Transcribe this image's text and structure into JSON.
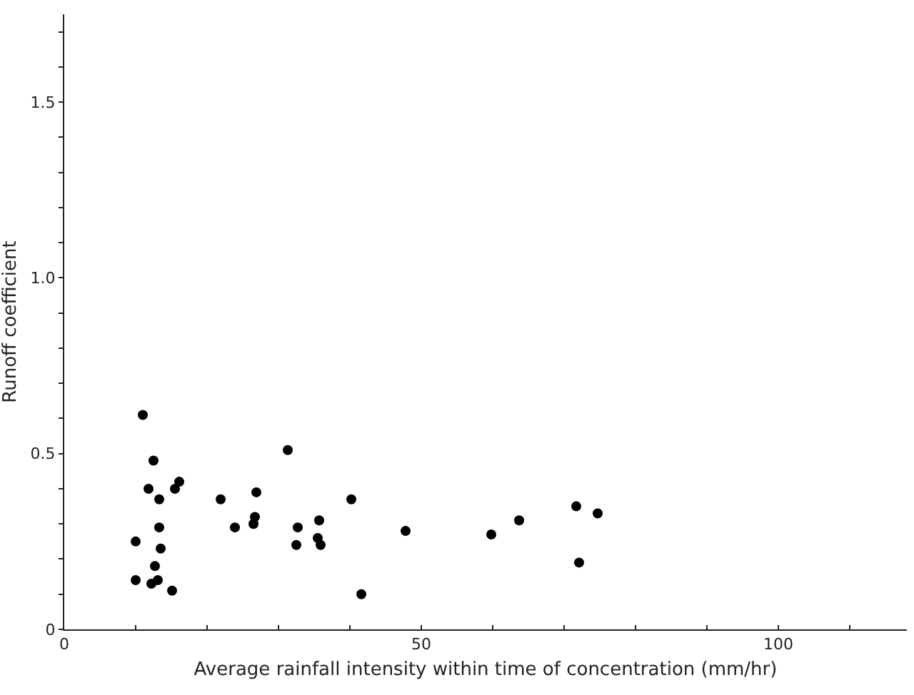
{
  "chart_data": {
    "type": "scatter",
    "xlabel": "Average rainfall intensity within time of concentration (mm/hr)",
    "ylabel": "Runoff coefficient",
    "x": [
      11.0,
      12.5,
      11.8,
      13.3,
      15.5,
      16.1,
      10.0,
      13.3,
      13.5,
      12.7,
      10.0,
      12.2,
      13.1,
      15.1,
      21.9,
      23.9,
      26.9,
      26.7,
      26.5,
      31.3,
      32.7,
      32.5,
      35.7,
      35.5,
      35.9,
      40.2,
      41.6,
      47.8,
      59.8,
      63.7,
      71.7,
      72.1,
      74.7
    ],
    "values": [
      0.61,
      0.48,
      0.4,
      0.37,
      0.4,
      0.42,
      0.25,
      0.29,
      0.23,
      0.18,
      0.14,
      0.13,
      0.14,
      0.11,
      0.37,
      0.29,
      0.39,
      0.32,
      0.3,
      0.51,
      0.29,
      0.24,
      0.31,
      0.26,
      0.24,
      0.37,
      0.1,
      0.28,
      0.27,
      0.31,
      0.35,
      0.19,
      0.33
    ],
    "color": "#000000",
    "marker": "circle",
    "grid": false,
    "xlim": [
      0,
      118
    ],
    "ylim": [
      0,
      1.75
    ],
    "xticks": [
      0,
      {
        "value": 10,
        "label": null
      },
      {
        "value": 20,
        "label": null
      },
      {
        "value": 30,
        "label": null
      },
      {
        "value": 40,
        "label": null
      },
      50,
      {
        "value": 60,
        "label": null
      },
      {
        "value": 70,
        "label": null
      },
      {
        "value": 80,
        "label": null
      },
      {
        "value": 90,
        "label": null
      },
      100,
      {
        "value": 110,
        "label": null
      }
    ],
    "yticks": [
      0,
      {
        "value": 0.1,
        "label": null
      },
      {
        "value": 0.2,
        "label": null
      },
      {
        "value": 0.3,
        "label": null
      },
      {
        "value": 0.4,
        "label": null
      },
      {
        "value": 0.5,
        "label": "0.5"
      },
      {
        "value": 0.6,
        "label": null
      },
      {
        "value": 0.7,
        "label": null
      },
      {
        "value": 0.8,
        "label": null
      },
      {
        "value": 0.9,
        "label": null
      },
      {
        "value": 1.0,
        "label": "1.0"
      },
      {
        "value": 1.1,
        "label": null
      },
      {
        "value": 1.2,
        "label": null
      },
      {
        "value": 1.3,
        "label": null
      },
      {
        "value": 1.4,
        "label": null
      },
      {
        "value": 1.5,
        "label": "1.5"
      },
      {
        "value": 1.6,
        "label": null
      },
      {
        "value": 1.7,
        "label": null
      }
    ]
  }
}
